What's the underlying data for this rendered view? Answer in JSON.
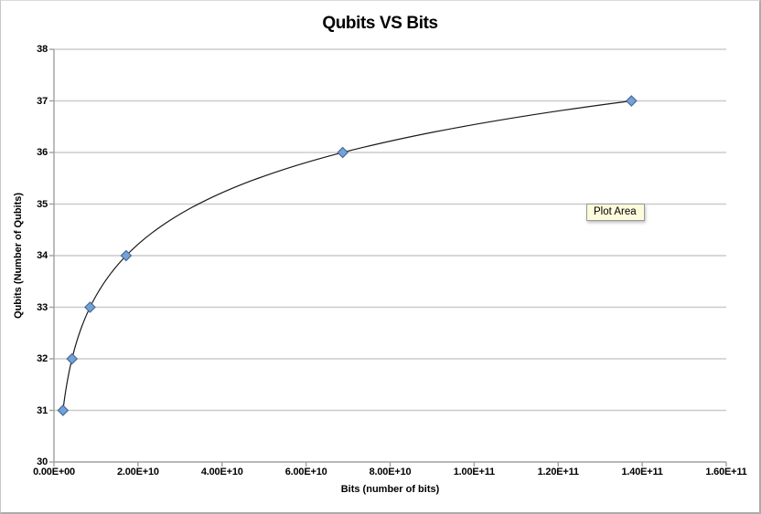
{
  "window": {
    "background": "#ffffff"
  },
  "tooltip": {
    "label": "Plot Area"
  },
  "colors": {
    "gridline": "#cbcbcb",
    "axis": "#a0a0a0",
    "line": "#1a1a1a",
    "marker_fill": "#72a2d9",
    "marker_stroke": "#4a6990",
    "tooltip_bg": "#fdfbdc",
    "text": "#000000"
  },
  "chart_data": {
    "type": "scatter",
    "title": "Qubits VS Bits",
    "xlabel": "Bits (number of bits)",
    "ylabel": "Qubits (Number of Qubits)",
    "xlim": [
      0,
      160000000000
    ],
    "ylim": [
      30,
      38
    ],
    "grid": "horizontal",
    "legend": "none",
    "x_ticks": [
      0,
      20000000000,
      40000000000,
      60000000000,
      80000000000,
      100000000000,
      120000000000,
      140000000000,
      160000000000
    ],
    "x_tick_labels": [
      "0.00E+00",
      "2.00E+10",
      "4.00E+10",
      "6.00E+10",
      "8.00E+10",
      "1.00E+11",
      "1.20E+11",
      "1.40E+11",
      "1.60E+11"
    ],
    "y_ticks": [
      30,
      31,
      32,
      33,
      34,
      35,
      36,
      37,
      38
    ],
    "y_tick_labels": [
      "30",
      "31",
      "32",
      "33",
      "34",
      "35",
      "36",
      "37",
      "38"
    ],
    "series": [
      {
        "name": "Qubits vs Bits",
        "marker": "diamond",
        "curve": "log2",
        "points": [
          [
            2147483648,
            31
          ],
          [
            4294967296,
            32
          ],
          [
            8589934592,
            33
          ],
          [
            17179869184,
            34
          ],
          [
            68719476736,
            36
          ],
          [
            137438953472,
            37
          ]
        ]
      }
    ]
  }
}
